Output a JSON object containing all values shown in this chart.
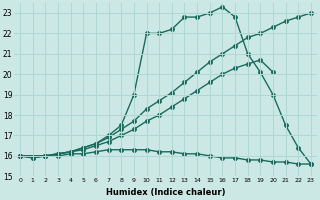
{
  "xlabel": "Humidex (Indice chaleur)",
  "bg_color": "#cce8e4",
  "grid_color": "#b0d8d2",
  "line_color": "#1a6b5e",
  "xlim": [
    -0.5,
    23.5
  ],
  "ylim": [
    15,
    23.5
  ],
  "xticks": [
    0,
    1,
    2,
    3,
    4,
    5,
    6,
    7,
    8,
    9,
    10,
    11,
    12,
    13,
    14,
    15,
    16,
    17,
    18,
    19,
    20,
    21,
    22,
    23
  ],
  "yticks": [
    15,
    16,
    17,
    18,
    19,
    20,
    21,
    22,
    23
  ],
  "line1_x": [
    0,
    1,
    2,
    3,
    4,
    5,
    6,
    7,
    8,
    9,
    10,
    11,
    12,
    13,
    14,
    15,
    16,
    17,
    18,
    19,
    20,
    21,
    22,
    23
  ],
  "line1_y": [
    16.0,
    15.9,
    16.0,
    16.0,
    16.1,
    16.1,
    16.2,
    16.3,
    16.3,
    16.3,
    16.3,
    16.2,
    16.2,
    16.1,
    16.1,
    16.0,
    15.9,
    15.9,
    15.8,
    15.8,
    15.7,
    15.7,
    15.6,
    15.6
  ],
  "line2_x": [
    0,
    2,
    3,
    4,
    5,
    6,
    7,
    8,
    9,
    10,
    11,
    12,
    13,
    14,
    15,
    16,
    17,
    18,
    19,
    20
  ],
  "line2_y": [
    16.0,
    16.0,
    16.1,
    16.2,
    16.3,
    16.5,
    16.7,
    17.0,
    17.3,
    17.7,
    18.0,
    18.4,
    18.8,
    19.2,
    19.6,
    20.0,
    20.3,
    20.5,
    20.7,
    20.1
  ],
  "line3_x": [
    0,
    2,
    3,
    4,
    5,
    6,
    7,
    8,
    9,
    10,
    11,
    12,
    13,
    14,
    15,
    16,
    17,
    18,
    19,
    20,
    21,
    22,
    23
  ],
  "line3_y": [
    16.0,
    16.0,
    16.1,
    16.2,
    16.4,
    16.6,
    16.9,
    17.3,
    17.7,
    18.3,
    18.7,
    19.1,
    19.6,
    20.1,
    20.6,
    21.0,
    21.4,
    21.8,
    22.0,
    22.3,
    22.6,
    22.8,
    23.0
  ],
  "line4_x": [
    0,
    1,
    2,
    3,
    4,
    5,
    6,
    7,
    8,
    9,
    10,
    11,
    12,
    13,
    14,
    15,
    16,
    17,
    18,
    19,
    20,
    21,
    22,
    23
  ],
  "line4_y": [
    16.0,
    15.9,
    16.0,
    16.1,
    16.2,
    16.4,
    16.6,
    17.0,
    17.5,
    19.0,
    22.0,
    22.0,
    22.2,
    22.8,
    22.8,
    23.0,
    23.3,
    22.8,
    21.0,
    20.1,
    19.0,
    17.5,
    16.4,
    15.6
  ]
}
